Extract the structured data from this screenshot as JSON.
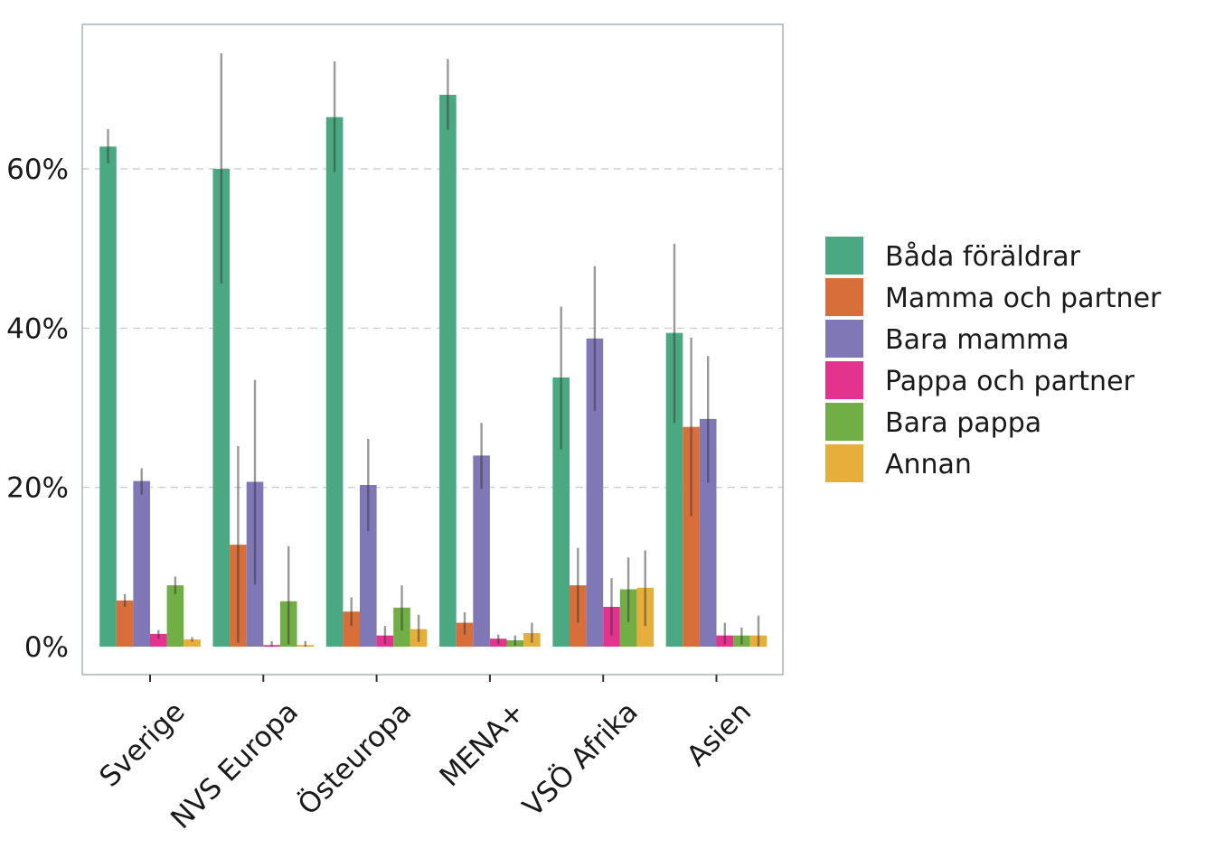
{
  "chart_data": {
    "type": "bar",
    "title": "",
    "xlabel": "",
    "ylabel": "",
    "ylim": [
      0,
      75
    ],
    "yticks": [
      0,
      20,
      40,
      60
    ],
    "ytick_labels": [
      "0%",
      "20%",
      "40%",
      "60%"
    ],
    "grid": true,
    "legend_position": "right",
    "categories": [
      "Sverige",
      "NVS Europa",
      "Östeuropa",
      "MENA+",
      "VSÖ Afrika",
      "Asien"
    ],
    "series": [
      {
        "name": "Båda föräldrar",
        "color": "#4aa882",
        "values": [
          62.8,
          60.0,
          66.5,
          69.3,
          33.8,
          39.4
        ],
        "ci_low": [
          60.7,
          45.6,
          59.6,
          64.9,
          24.8,
          28.1
        ],
        "ci_high": [
          65.0,
          74.5,
          73.5,
          73.8,
          42.7,
          50.6
        ]
      },
      {
        "name": "Mamma och partner",
        "color": "#d86e3a",
        "values": [
          5.8,
          12.8,
          4.4,
          3.0,
          7.7,
          27.6
        ],
        "ci_low": [
          5.0,
          0.5,
          2.6,
          1.5,
          3.0,
          16.4
        ],
        "ci_high": [
          6.6,
          25.2,
          6.2,
          4.3,
          12.4,
          38.8
        ]
      },
      {
        "name": "Bara mamma",
        "color": "#8077b7",
        "values": [
          20.8,
          20.7,
          20.3,
          24.0,
          38.7,
          28.6
        ],
        "ci_low": [
          19.1,
          7.8,
          14.5,
          19.8,
          29.6,
          20.6
        ],
        "ci_high": [
          22.4,
          33.5,
          26.1,
          28.1,
          47.8,
          36.5
        ]
      },
      {
        "name": "Pappa och partner",
        "color": "#e3338e",
        "values": [
          1.6,
          0.2,
          1.4,
          1.0,
          5.0,
          1.4
        ],
        "ci_low": [
          1.0,
          0.0,
          0.3,
          0.3,
          1.4,
          0.3
        ],
        "ci_high": [
          2.1,
          0.7,
          2.6,
          1.5,
          8.6,
          3.0
        ]
      },
      {
        "name": "Bara pappa",
        "color": "#71ae45",
        "values": [
          7.7,
          5.7,
          4.9,
          0.8,
          7.2,
          1.4
        ],
        "ci_low": [
          6.6,
          0.3,
          2.0,
          0.1,
          3.1,
          0.3
        ],
        "ci_high": [
          8.8,
          12.6,
          7.7,
          1.4,
          11.2,
          2.4
        ]
      },
      {
        "name": "Annan",
        "color": "#e6ae3a",
        "values": [
          0.9,
          0.2,
          2.2,
          1.7,
          7.4,
          1.4
        ],
        "ci_low": [
          0.6,
          0.0,
          0.6,
          0.5,
          2.6,
          0.0
        ],
        "ci_high": [
          1.2,
          0.7,
          4.0,
          3.0,
          12.1,
          3.9
        ]
      }
    ]
  }
}
